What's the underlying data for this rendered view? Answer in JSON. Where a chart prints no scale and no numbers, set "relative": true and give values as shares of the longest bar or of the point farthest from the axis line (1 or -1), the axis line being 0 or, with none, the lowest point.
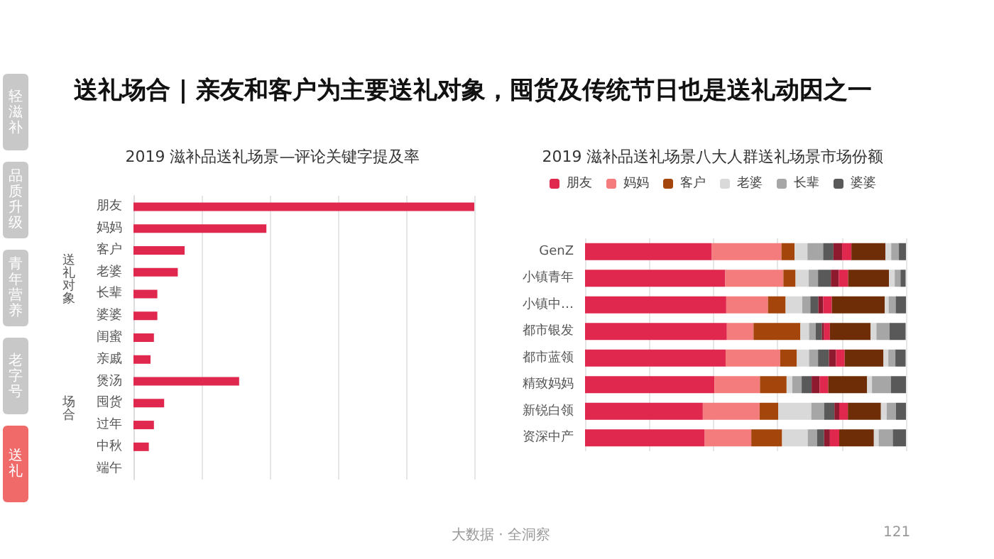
{
  "chart_data": [
    {
      "type": "other",
      "title": "送礼场合 | 亲友和客户为主要送礼对象，囤货及传统节日也是送礼动因之一",
      "annotations": [
        "轻滋补",
        "品质升级",
        "青年营养",
        "老字号",
        "送礼",
        "大数据 · 全洞察",
        "121"
      ]
    },
    {
      "type": "bar",
      "orientation": "horizontal",
      "relative": true,
      "title": "2019 滋补品送礼场景—评论关键字提及率",
      "categories": [
        "朋友",
        "妈妈",
        "客户",
        "老婆",
        "长辈",
        "婆婆",
        "闺蜜",
        "亲戚",
        "煲汤",
        "囤货",
        "过年",
        "中秋",
        "端午"
      ],
      "values": [
        1,
        0.39,
        0.15,
        0.13,
        0.07,
        0.07,
        0.06,
        0.05,
        0.31,
        0.09,
        0.06,
        0.045,
        0
      ],
      "color": "#e0284f",
      "grid": "x",
      "annotations": [
        "送礼对象",
        "场合"
      ]
    },
    {
      "type": "bar",
      "orientation": "horizontal",
      "relative": true,
      "stacked": true,
      "title": "2019 滋补品送礼场景八大人群送礼场景市场份额",
      "categories": [
        "GenZ",
        "小镇青年",
        "小镇中…",
        "都市银发",
        "都市蓝领",
        "精致妈妈",
        "新锐白领",
        "资深中产"
      ],
      "grid": "x",
      "legend": "top",
      "series": [
        {
          "name": "朋友",
          "color": "#e0284f",
          "values": [
            0.395,
            0.437,
            0.44,
            0.442,
            0.438,
            0.403,
            0.367,
            0.373
          ]
        },
        {
          "name": "妈妈",
          "color": "#f47c7c",
          "values": [
            0.217,
            0.181,
            0.13,
            0.083,
            0.17,
            0.142,
            0.177,
            0.145
          ]
        },
        {
          "name": "客户",
          "color": "#a4460c",
          "values": [
            0.041,
            0.038,
            0.055,
            0.146,
            0.052,
            0.083,
            0.058,
            0.096
          ]
        },
        {
          "name": "老婆",
          "color": "#d9d9d9",
          "values": [
            0.04,
            0.041,
            0.052,
            0.027,
            0.038,
            0.018,
            0.103,
            0.08
          ]
        },
        {
          "name": "长辈",
          "color": "#a6a6a6",
          "values": [
            0.049,
            0.029,
            0.025,
            0.021,
            0.028,
            0.029,
            0.04,
            0.029
          ]
        },
        {
          "name": "婆婆",
          "color": "#595959",
          "values": [
            0.032,
            0.04,
            0.025,
            0.019,
            0.034,
            0.031,
            0.032,
            0.022
          ]
        },
        {
          "color": "#8e1a30",
          "values": [
            0.027,
            0.025,
            0.015,
            0.007,
            0.022,
            0.025,
            0.015,
            0.018
          ]
        },
        {
          "color": "#e0284f",
          "values": [
            0.029,
            0.029,
            0.027,
            0.018,
            0.027,
            0.027,
            0.027,
            0.029
          ]
        },
        {
          "color": "#6e2d06",
          "values": [
            0.106,
            0.127,
            0.165,
            0.127,
            0.121,
            0.121,
            0.103,
            0.108
          ]
        },
        {
          "color": "#d9d9d9",
          "values": [
            0.018,
            0.018,
            0.012,
            0.018,
            0.015,
            0.015,
            0.018,
            0.015
          ]
        },
        {
          "color": "#a6a6a6",
          "values": [
            0.024,
            0.018,
            0.022,
            0.041,
            0.022,
            0.059,
            0.029,
            0.044
          ]
        },
        {
          "color": "#595959",
          "values": [
            0.022,
            0.016,
            0.032,
            0.05,
            0.032,
            0.047,
            0.031,
            0.041
          ]
        }
      ]
    }
  ]
}
